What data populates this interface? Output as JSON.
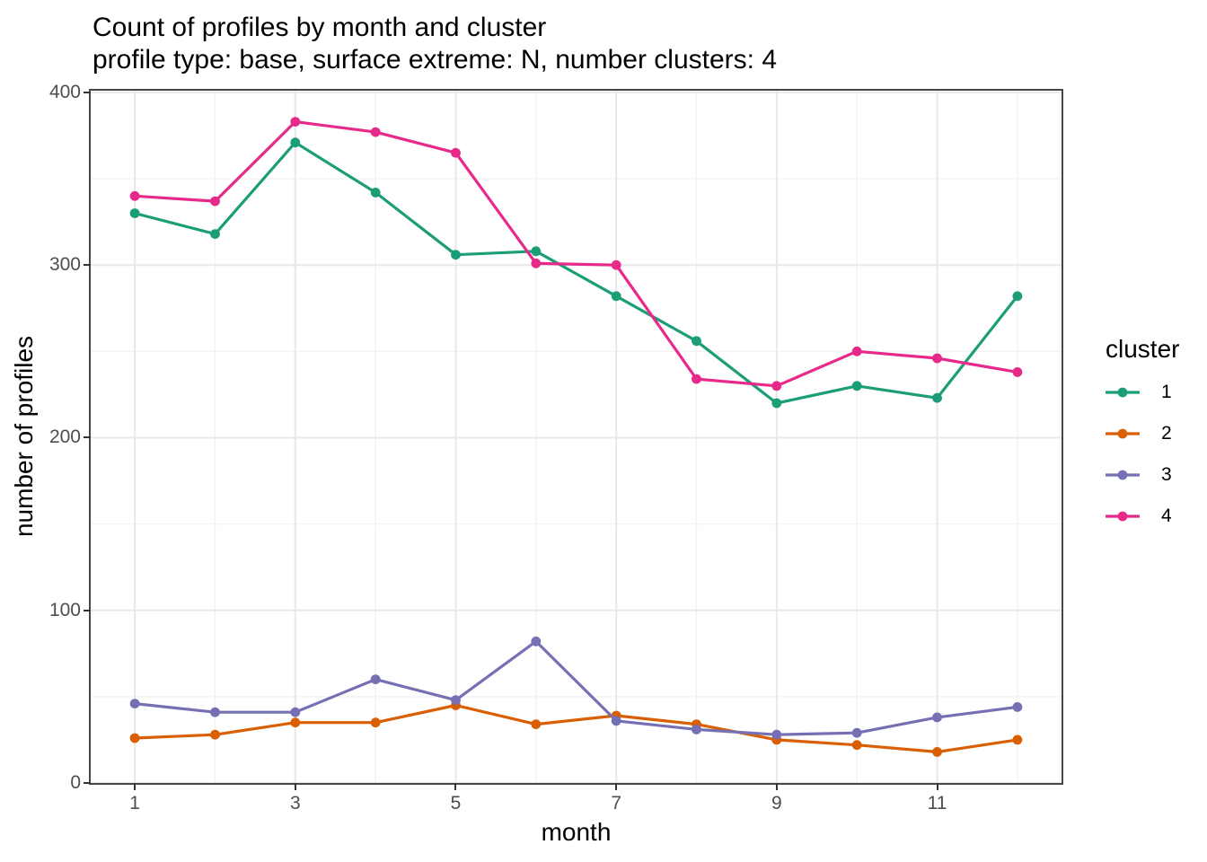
{
  "header": {
    "title": "Count of profiles by month and cluster",
    "subtitle": "profile type: base, surface extreme: N, number clusters: 4"
  },
  "chart_data": {
    "type": "line",
    "title": "Count of profiles by month and cluster",
    "subtitle": "profile type: base, surface extreme: N, number clusters: 4",
    "xlabel": "month",
    "ylabel": "number of profiles",
    "legend_title": "cluster",
    "legend_position": "right",
    "grid": true,
    "x": [
      1,
      2,
      3,
      4,
      5,
      6,
      7,
      8,
      9,
      10,
      11,
      12
    ],
    "x_ticks": [
      1,
      3,
      5,
      7,
      9,
      11
    ],
    "x_minor": [
      2,
      4,
      6,
      8,
      10,
      12
    ],
    "y_ticks": [
      0,
      100,
      200,
      300,
      400
    ],
    "y_minor": [
      50,
      150,
      250,
      350
    ],
    "xlim": [
      0.45,
      12.55
    ],
    "ylim": [
      0,
      401
    ],
    "series": [
      {
        "name": "1",
        "color": "#1B9E77",
        "values": [
          330,
          318,
          371,
          342,
          306,
          308,
          282,
          256,
          220,
          230,
          223,
          282
        ]
      },
      {
        "name": "2",
        "color": "#D95F02",
        "values": [
          26,
          28,
          35,
          35,
          45,
          34,
          39,
          34,
          25,
          22,
          18,
          25
        ]
      },
      {
        "name": "3",
        "color": "#7570B3",
        "values": [
          46,
          41,
          41,
          60,
          48,
          82,
          36,
          31,
          28,
          29,
          38,
          44
        ]
      },
      {
        "name": "4",
        "color": "#E7298A",
        "values": [
          340,
          337,
          383,
          377,
          365,
          301,
          300,
          234,
          230,
          250,
          246,
          238
        ]
      }
    ],
    "style": {
      "major_grid_color": "#e8e8e8",
      "minor_grid_color": "#f3f3f3",
      "panel_border_color": "#474747",
      "tick_color": "#333333",
      "axis_text_color": "#4d4d4d"
    }
  }
}
